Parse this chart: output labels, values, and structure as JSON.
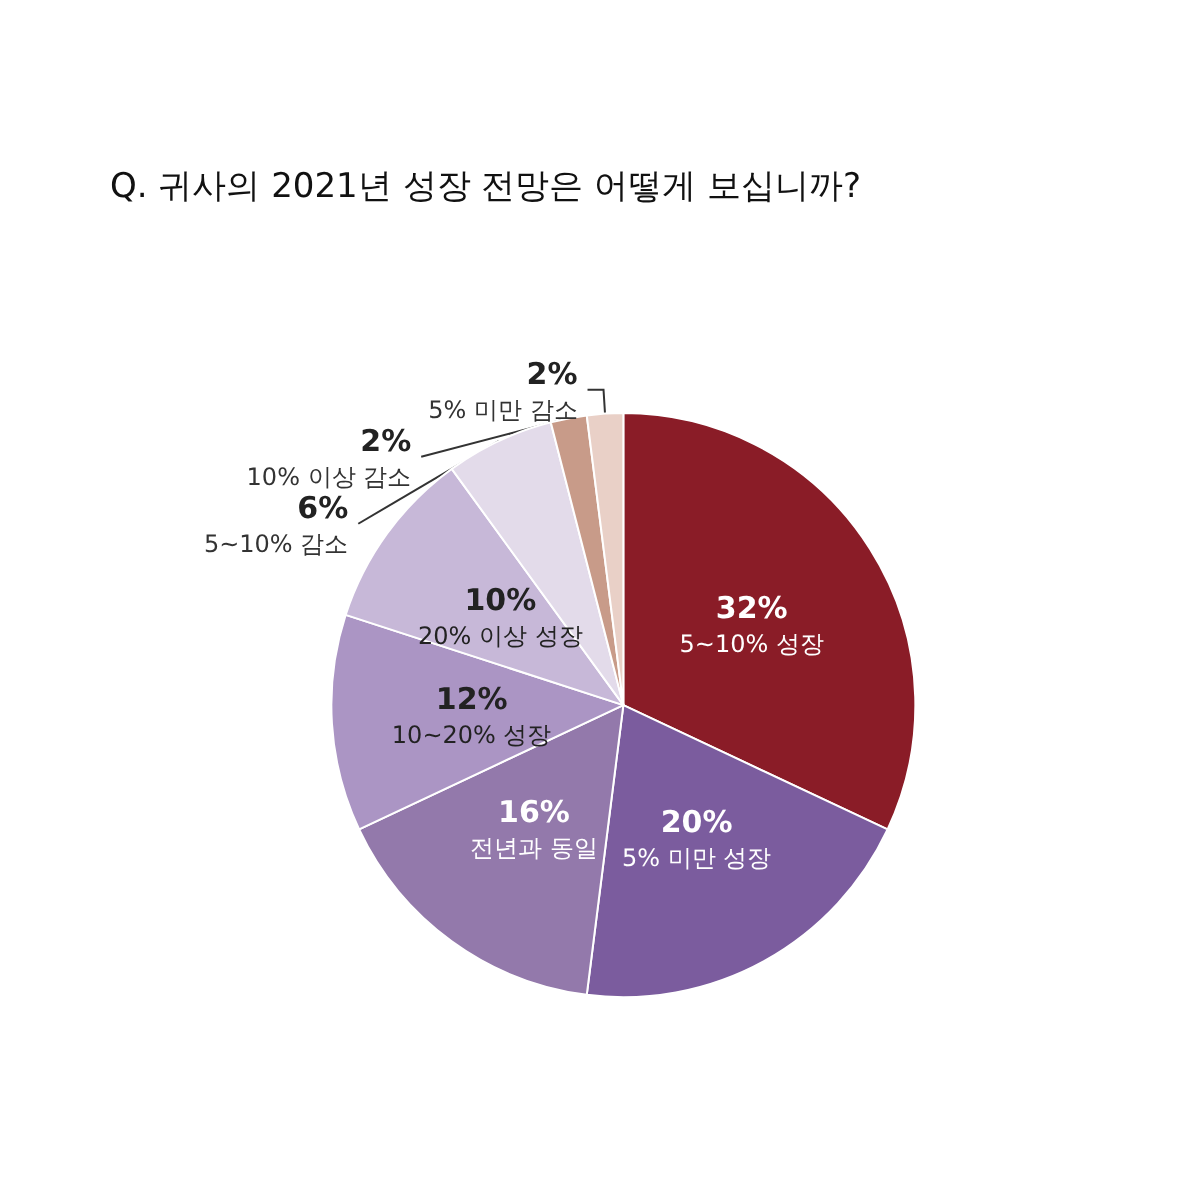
{
  "chart_data": {
    "type": "pie",
    "title": "Q. 귀사의 2021년 성장 전망은 어떻게 보십니까?",
    "categories": [
      "5~10% 성장",
      "5% 미만 성장",
      "전년과 동일",
      "10~20% 성장",
      "20% 이상 성장",
      "5~10% 감소",
      "10% 이상 감소",
      "5% 미만 감소"
    ],
    "values": [
      32,
      20,
      16,
      12,
      10,
      6,
      2,
      2
    ],
    "value_labels": [
      "32%",
      "20%",
      "16%",
      "12%",
      "10%",
      "6%",
      "2%",
      "2%"
    ],
    "colors": [
      "#8a1c27",
      "#7b5c9e",
      "#9379ab",
      "#ab95c4",
      "#c7b8d8",
      "#e3dbea",
      "#c89b89",
      "#e9d0c7"
    ],
    "legend": false
  }
}
